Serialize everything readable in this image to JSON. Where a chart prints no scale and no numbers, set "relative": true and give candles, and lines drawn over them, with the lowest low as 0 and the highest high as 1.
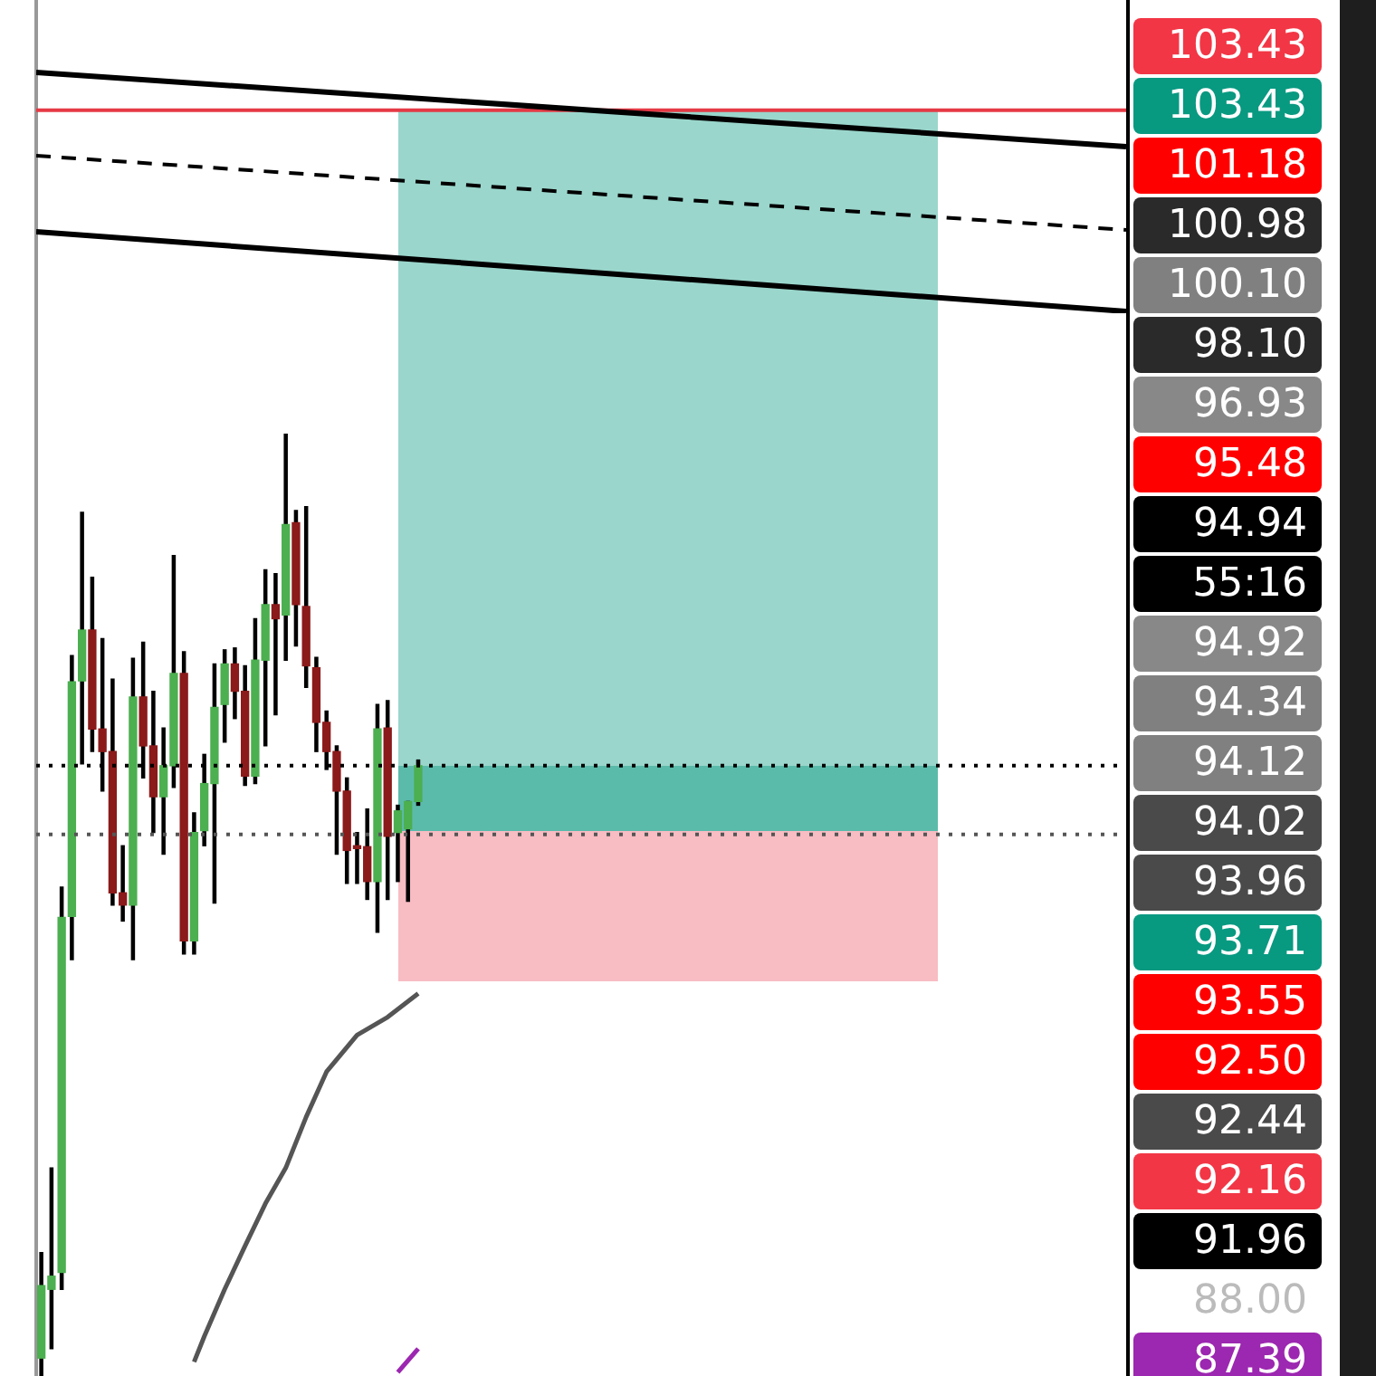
{
  "chart_data": {
    "type": "candlestick",
    "relative": true,
    "tick_labels": false,
    "categories": [
      null,
      null,
      null,
      null,
      null,
      null,
      null,
      null,
      null,
      null,
      null,
      null,
      null,
      null,
      null,
      null,
      null,
      null,
      null,
      null,
      null,
      null,
      null,
      null,
      null,
      null,
      null,
      null,
      null,
      null,
      null,
      null,
      null,
      null,
      null,
      null,
      null,
      null,
      null,
      null,
      null,
      null,
      null,
      null,
      null,
      null,
      null,
      null,
      null,
      null,
      null,
      null,
      null,
      null,
      null,
      null,
      null,
      null,
      null,
      null,
      null,
      null,
      null,
      null,
      null,
      null,
      null,
      null,
      null,
      null,
      null,
      null,
      null,
      null,
      null,
      null,
      null,
      null,
      null,
      null,
      null,
      null,
      null,
      null,
      null,
      null,
      null,
      null,
      null,
      null,
      null,
      null,
      null,
      null,
      null,
      null,
      null,
      null,
      null,
      null,
      null,
      null,
      null,
      null,
      null,
      null,
      null
    ],
    "ohlc": [
      [
        0.019,
        0.131,
        0,
        0.096
      ],
      [
        0.092,
        0.221,
        0.029,
        0.106
      ],
      [
        0.11,
        0.519,
        0.092,
        0.487
      ],
      [
        0.488,
        0.765,
        0.442,
        0.737
      ],
      [
        0.738,
        0.917,
        0.65,
        0.792
      ],
      [
        0.792,
        0.848,
        0.663,
        0.687
      ],
      [
        0.687,
        0.783,
        0.621,
        0.663
      ],
      [
        0.663,
        0.74,
        0.5,
        0.513
      ],
      [
        0.513,
        0.563,
        0.483,
        0.5
      ],
      [
        0.5,
        0.762,
        0.442,
        0.721
      ],
      [
        0.721,
        0.779,
        0.635,
        0.669
      ],
      [
        0.669,
        0.727,
        0.577,
        0.615
      ],
      [
        0.615,
        0.688,
        0.554,
        0.648
      ],
      [
        0.648,
        0.871,
        0.625,
        0.746
      ],
      [
        0.746,
        0.769,
        0.448,
        0.462
      ],
      [
        0.462,
        0.598,
        0.448,
        0.577
      ],
      [
        0.579,
        0.66,
        0.563,
        0.629
      ],
      [
        0.629,
        0.756,
        0.502,
        0.71
      ],
      [
        0.713,
        0.771,
        0.673,
        0.756
      ],
      [
        0.756,
        0.773,
        0.698,
        0.727
      ],
      [
        0.727,
        0.754,
        0.627,
        0.637
      ],
      [
        0.637,
        0.804,
        0.629,
        0.76
      ],
      [
        0.76,
        0.856,
        0.669,
        0.819
      ],
      [
        0.819,
        0.852,
        0.702,
        0.804
      ],
      [
        0.808,
        1,
        0.76,
        0.904
      ],
      [
        0.906,
        0.919,
        0.775,
        0.819
      ],
      [
        0.817,
        0.923,
        0.731,
        0.754
      ],
      [
        0.752,
        0.763,
        0.663,
        0.694
      ],
      [
        0.694,
        0.706,
        0.644,
        0.663
      ],
      [
        0.663,
        0.669,
        0.554,
        0.621
      ],
      [
        0.621,
        0.635,
        0.523,
        0.558
      ],
      [
        0.563,
        0.577,
        0.523,
        0.56
      ],
      [
        0.562,
        0.602,
        0.506,
        0.525
      ],
      [
        0.525,
        0.713,
        0.471,
        0.687
      ],
      [
        0.688,
        0.717,
        0.506,
        0.573
      ],
      [
        0.577,
        0.606,
        0.525,
        0.6
      ],
      [
        0.581,
        0.61,
        0.504,
        0.61
      ],
      [
        0.61,
        0.654,
        0.606,
        0.648
      ],
      null,
      null,
      null,
      null,
      null,
      null,
      null,
      null,
      null,
      null,
      null,
      null,
      null,
      null,
      null,
      null,
      null,
      null,
      null,
      null,
      null,
      null,
      null,
      null,
      null,
      null,
      null,
      null,
      null,
      null,
      null,
      null,
      null,
      null,
      null,
      null,
      null,
      null,
      null,
      null,
      null,
      null,
      null,
      null,
      null,
      null,
      null,
      null,
      null,
      null,
      null,
      null,
      null,
      null,
      null,
      null,
      null,
      null,
      null,
      null,
      null,
      null,
      null,
      null,
      null,
      null,
      null,
      null,
      null
    ],
    "colors": [
      "#4caf50",
      "#4caf50",
      "#4caf50",
      "#4caf50",
      "#4caf50",
      "#8b1a1a",
      "#8b1a1a",
      "#8b1a1a",
      "#8b1a1a",
      "#4caf50",
      "#8b1a1a",
      "#8b1a1a",
      "#4caf50",
      "#4caf50",
      "#8b1a1a",
      "#4caf50",
      "#4caf50",
      "#4caf50",
      "#4caf50",
      "#8b1a1a",
      "#8b1a1a",
      "#4caf50",
      "#4caf50",
      "#8b1a1a",
      "#4caf50",
      "#8b1a1a",
      "#8b1a1a",
      "#8b1a1a",
      "#8b1a1a",
      "#8b1a1a",
      "#8b1a1a",
      "#8b1a1a",
      "#8b1a1a",
      "#4caf50",
      "#8b1a1a",
      "#4caf50",
      "#4caf50",
      "#4caf50",
      null,
      null,
      null,
      null,
      null,
      null,
      null,
      null,
      null,
      null,
      null,
      null,
      null,
      null,
      null,
      null,
      null,
      null,
      null,
      null,
      null,
      null,
      null,
      null,
      null,
      null,
      null,
      null,
      null,
      null,
      null,
      null,
      null,
      null,
      null,
      null,
      null,
      null,
      null,
      null,
      null,
      null,
      null,
      null,
      null,
      null,
      null,
      null,
      null,
      null,
      null,
      null,
      null,
      null,
      null,
      null,
      null,
      null,
      null,
      null,
      null,
      null,
      null,
      null,
      null,
      null,
      null,
      null,
      null
    ],
    "series": [
      {
        "type": "line",
        "color": "#555555",
        "line_style": "solid",
        "values": [
          null,
          null,
          null,
          null,
          null,
          null,
          null,
          null,
          null,
          null,
          null,
          null,
          null,
          null,
          null,
          0.015,
          0.042,
          null,
          0.092,
          null,
          0.138,
          null,
          0.183,
          null,
          0.221,
          null,
          0.275,
          null,
          0.323,
          null,
          null,
          0.362,
          null,
          null,
          0.381,
          null,
          null,
          0.406,
          null,
          null,
          null,
          null,
          null,
          null,
          null,
          null,
          null,
          null,
          null,
          null,
          null,
          null,
          null,
          null,
          null,
          null,
          null,
          null,
          null,
          null,
          null,
          null,
          null,
          null,
          null,
          null,
          null,
          null,
          null,
          null,
          null,
          null,
          null,
          null,
          null,
          null,
          null,
          null,
          null,
          null,
          null,
          null,
          null,
          null,
          null,
          null,
          null,
          null,
          null,
          null,
          null,
          null,
          null,
          null,
          null,
          null,
          null,
          null,
          null,
          null,
          null,
          null,
          null,
          null,
          null,
          null,
          null
        ]
      },
      {
        "type": "line",
        "color": "#9c27b0",
        "line_style": "solid",
        "values": [
          null,
          null,
          null,
          null,
          null,
          null,
          null,
          null,
          null,
          null,
          null,
          null,
          null,
          null,
          null,
          null,
          null,
          null,
          null,
          null,
          null,
          null,
          null,
          null,
          null,
          null,
          null,
          null,
          null,
          null,
          null,
          null,
          null,
          null,
          null,
          0.004,
          null,
          0.029,
          null,
          null,
          null,
          null,
          null,
          null,
          null,
          null,
          null,
          null,
          null,
          null,
          null,
          null,
          null,
          null,
          null,
          null,
          null,
          null,
          null,
          null,
          null,
          null,
          null,
          null,
          null,
          null,
          null,
          null,
          null,
          null,
          null,
          null,
          null,
          null,
          null,
          null,
          null,
          null,
          null,
          null,
          null,
          null,
          null,
          null,
          null,
          null,
          null,
          null,
          null,
          null,
          null,
          null,
          null,
          null,
          null,
          null,
          null,
          null,
          null,
          null,
          null,
          null,
          null,
          null,
          null,
          null,
          null
        ]
      }
    ],
    "ref_lines": [
      {
        "axis": "y",
        "value": 1.344,
        "color": "#e53945",
        "line_style": "solid"
      },
      {
        "axis": "y",
        "value": 0.648,
        "color": "#000000",
        "line_style": "dotted"
      },
      {
        "axis": "y",
        "value": 0.575,
        "color": "#555555",
        "line_style": "dotted"
      }
    ],
    "annotations": [
      "103.43",
      "103.43",
      "101.18",
      "100.98",
      "100.10",
      "98.10",
      "96.93",
      "95.48",
      "94.94",
      "55:16",
      "94.92",
      "94.34",
      "94.12",
      "94.02",
      "93.96",
      "93.71",
      "93.55",
      "92.50",
      "92.44",
      "92.16",
      "91.96",
      "88.00",
      "87.39"
    ]
  }
}
